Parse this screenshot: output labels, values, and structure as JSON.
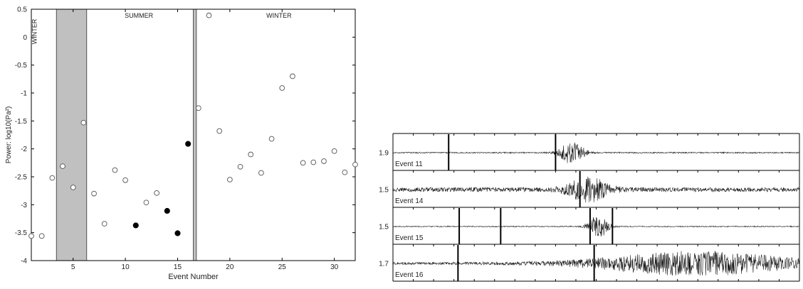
{
  "chart_data": [
    {
      "type": "scatter",
      "title": "",
      "xlabel": "Event Number",
      "ylabel": "Power: log10(Pa²)",
      "xlim": [
        1,
        32
      ],
      "ylim": [
        -4,
        0.5
      ],
      "xticks": [
        5,
        10,
        15,
        20,
        25,
        30
      ],
      "yticks": [
        0.5,
        0,
        -0.5,
        -1,
        -1.5,
        -2,
        -2.5,
        -3,
        -3.5,
        -4
      ],
      "grid": false,
      "season_labels": [
        {
          "text": "WINTER",
          "orientation": "vertical",
          "x": 1.5,
          "y": 0.1
        },
        {
          "text": "SUMMER",
          "x": 11.3,
          "y": 0.35
        },
        {
          "text": "WINTER",
          "x": 24.7,
          "y": 0.35
        }
      ],
      "shaded_regions": [
        {
          "x0": 3.4,
          "x1": 6.3,
          "color": "#c0c0c0"
        },
        {
          "x0": 16.5,
          "x1": 16.8,
          "color": "#c0c0c0"
        }
      ],
      "series": [
        {
          "marker": "open-circle",
          "points": [
            [
              1,
              -3.56
            ],
            [
              2,
              -3.56
            ],
            [
              3,
              -2.52
            ],
            [
              4,
              -2.31
            ],
            [
              5,
              -2.69
            ],
            [
              6,
              -1.53
            ],
            [
              7,
              -2.8
            ],
            [
              8,
              -3.34
            ],
            [
              9,
              -2.38
            ],
            [
              10,
              -2.56
            ],
            [
              12,
              -2.96
            ],
            [
              13,
              -2.79
            ],
            [
              17,
              -1.27
            ],
            [
              18,
              0.39
            ],
            [
              19,
              -1.68
            ],
            [
              20,
              -2.55
            ],
            [
              21,
              -2.32
            ],
            [
              22,
              -2.1
            ],
            [
              23,
              -2.43
            ],
            [
              24,
              -1.82
            ],
            [
              25,
              -0.91
            ],
            [
              26,
              -0.7
            ],
            [
              27,
              -2.25
            ],
            [
              28,
              -2.24
            ],
            [
              29,
              -2.22
            ],
            [
              30,
              -2.04
            ],
            [
              31,
              -2.42
            ],
            [
              32,
              -2.28
            ]
          ]
        },
        {
          "marker": "filled-circle",
          "points": [
            [
              11,
              -3.37
            ],
            [
              14,
              -3.11
            ],
            [
              15,
              -3.51
            ],
            [
              16,
              -1.91
            ]
          ]
        }
      ]
    },
    {
      "type": "line",
      "description": "Seismogram traces",
      "traces": [
        {
          "label": "Event 11",
          "scale": "1.9",
          "picks": [
            0.137,
            0.4
          ],
          "burst_center": 0.44,
          "burst_width": 0.03,
          "noise": 0.1
        },
        {
          "label": "Event 14",
          "scale": "1.5",
          "picks": [
            0.46
          ],
          "burst_center": 0.48,
          "burst_width": 0.05,
          "noise": 0.35
        },
        {
          "label": "Event 15",
          "scale": "1.5",
          "picks": [
            0.163,
            0.265,
            0.485,
            0.54
          ],
          "burst_center": 0.505,
          "burst_width": 0.025,
          "noise": 0.08
        },
        {
          "label": "Event 16",
          "scale": "1.7",
          "picks": [
            0.16,
            0.495
          ],
          "burst_center": 0.75,
          "burst_width": 0.25,
          "noise": 0.22
        }
      ]
    }
  ]
}
